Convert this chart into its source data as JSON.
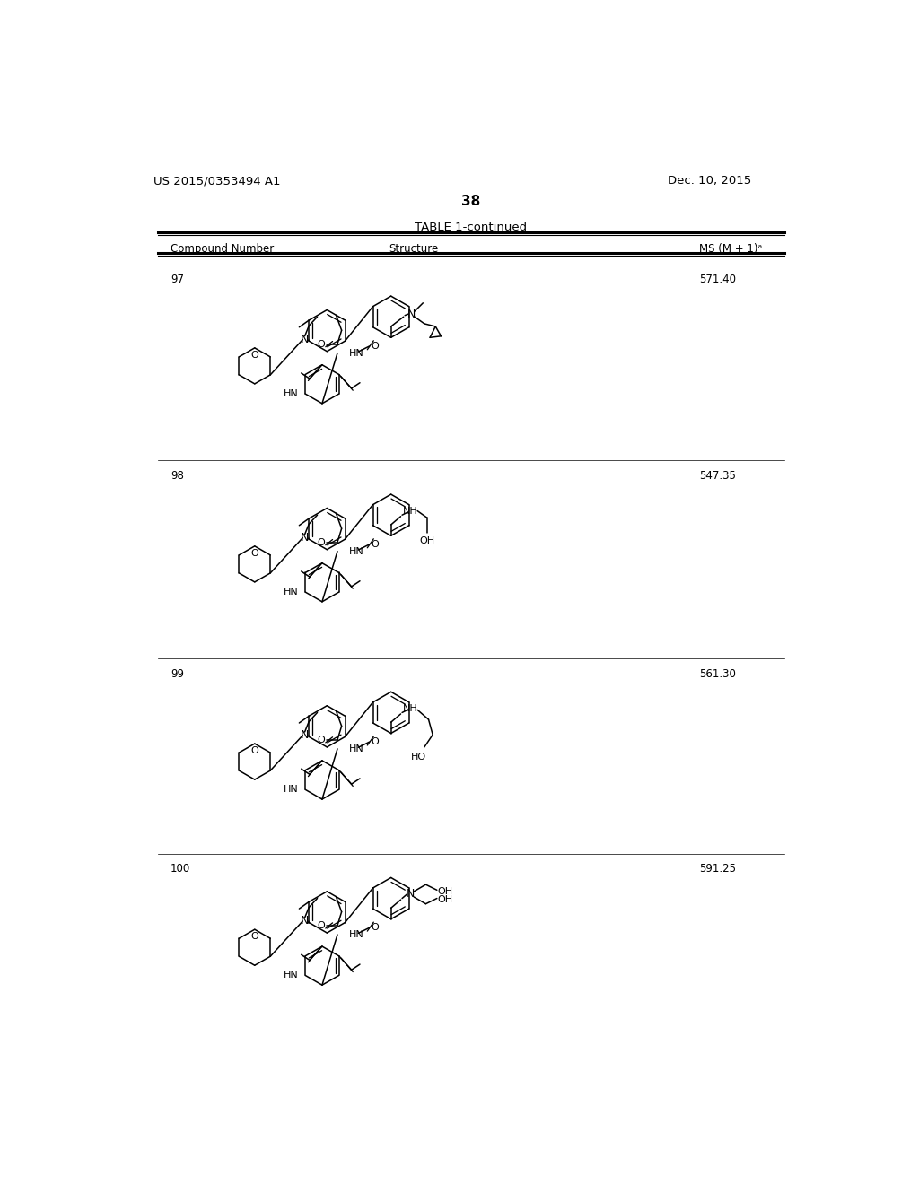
{
  "page_number": "38",
  "patent_number": "US 2015/0353494 A1",
  "patent_date": "Dec. 10, 2015",
  "table_title": "TABLE 1-continued",
  "col1": "Compound Number",
  "col2": "Structure",
  "col3": "MS (M + 1)ᵃ",
  "compounds": [
    {
      "number": "97",
      "ms": "571.40"
    },
    {
      "number": "98",
      "ms": "547.35"
    },
    {
      "number": "99",
      "ms": "561.30"
    },
    {
      "number": "100",
      "ms": "591.25"
    }
  ],
  "bg_color": "#ffffff"
}
